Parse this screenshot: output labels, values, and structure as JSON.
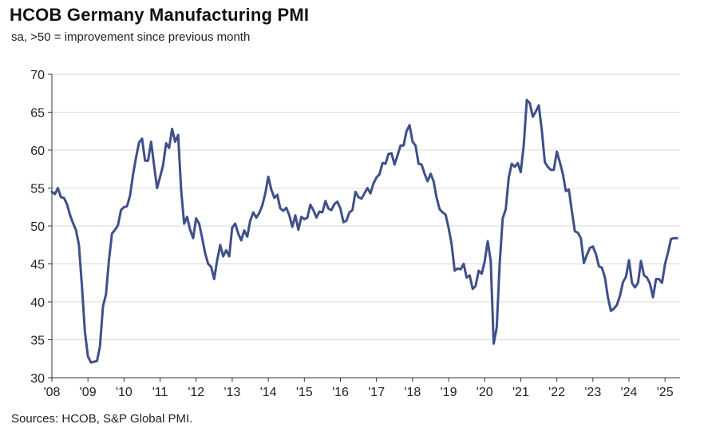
{
  "header": {
    "title": "HCOB Germany Manufacturing PMI",
    "subtitle": "sa, >50 = improvement since previous month"
  },
  "footer": {
    "source": "Sources: HCOB, S&P Global PMI."
  },
  "colors": {
    "line": "#3f4f8a",
    "grid": "#d9d9d9",
    "axis": "#333333"
  },
  "chart_data": {
    "type": "line",
    "title": "HCOB Germany Manufacturing PMI",
    "subtitle": "sa, >50 = improvement since previous month",
    "xlabel": "",
    "ylabel": "",
    "ylim": [
      30,
      70
    ],
    "yticks": [
      30,
      35,
      40,
      45,
      50,
      55,
      60,
      65,
      70
    ],
    "xlim": [
      "2008-01",
      "2025-06"
    ],
    "xticks": [
      "'08",
      "'09",
      "'10",
      "'11",
      "'12",
      "'13",
      "'14",
      "'15",
      "'16",
      "'17",
      "'18",
      "'19",
      "'20",
      "'21",
      "'22",
      "'23",
      "'24",
      "'25"
    ],
    "grid": "horizontal",
    "series": [
      {
        "x": [
          "2008-01",
          "2008-02",
          "2008-03",
          "2008-04",
          "2008-05",
          "2008-06",
          "2008-07",
          "2008-08",
          "2008-09",
          "2008-10",
          "2008-11",
          "2008-12",
          "2009-01",
          "2009-02",
          "2009-03",
          "2009-04",
          "2009-05",
          "2009-06",
          "2009-07",
          "2009-08",
          "2009-09",
          "2009-10",
          "2009-11",
          "2009-12",
          "2010-01",
          "2010-02",
          "2010-03",
          "2010-04",
          "2010-05",
          "2010-06",
          "2010-07",
          "2010-08",
          "2010-09",
          "2010-10",
          "2010-11",
          "2010-12",
          "2011-01",
          "2011-02",
          "2011-03",
          "2011-04",
          "2011-05",
          "2011-06",
          "2011-07",
          "2011-08",
          "2011-09",
          "2011-10",
          "2011-11",
          "2011-12",
          "2012-01",
          "2012-02",
          "2012-03",
          "2012-04",
          "2012-05",
          "2012-06",
          "2012-07",
          "2012-08",
          "2012-09",
          "2012-10",
          "2012-11",
          "2012-12",
          "2013-01",
          "2013-02",
          "2013-03",
          "2013-04",
          "2013-05",
          "2013-06",
          "2013-07",
          "2013-08",
          "2013-09",
          "2013-10",
          "2013-11",
          "2013-12",
          "2014-01",
          "2014-02",
          "2014-03",
          "2014-04",
          "2014-05",
          "2014-06",
          "2014-07",
          "2014-08",
          "2014-09",
          "2014-10",
          "2014-11",
          "2014-12",
          "2015-01",
          "2015-02",
          "2015-03",
          "2015-04",
          "2015-05",
          "2015-06",
          "2015-07",
          "2015-08",
          "2015-09",
          "2015-10",
          "2015-11",
          "2015-12",
          "2016-01",
          "2016-02",
          "2016-03",
          "2016-04",
          "2016-05",
          "2016-06",
          "2016-07",
          "2016-08",
          "2016-09",
          "2016-10",
          "2016-11",
          "2016-12",
          "2017-01",
          "2017-02",
          "2017-03",
          "2017-04",
          "2017-05",
          "2017-06",
          "2017-07",
          "2017-08",
          "2017-09",
          "2017-10",
          "2017-11",
          "2017-12",
          "2018-01",
          "2018-02",
          "2018-03",
          "2018-04",
          "2018-05",
          "2018-06",
          "2018-07",
          "2018-08",
          "2018-09",
          "2018-10",
          "2018-11",
          "2018-12",
          "2019-01",
          "2019-02",
          "2019-03",
          "2019-04",
          "2019-05",
          "2019-06",
          "2019-07",
          "2019-08",
          "2019-09",
          "2019-10",
          "2019-11",
          "2019-12",
          "2020-01",
          "2020-02",
          "2020-03",
          "2020-04",
          "2020-05",
          "2020-06",
          "2020-07",
          "2020-08",
          "2020-09",
          "2020-10",
          "2020-11",
          "2020-12",
          "2021-01",
          "2021-02",
          "2021-03",
          "2021-04",
          "2021-05",
          "2021-06",
          "2021-07",
          "2021-08",
          "2021-09",
          "2021-10",
          "2021-11",
          "2021-12",
          "2022-01",
          "2022-02",
          "2022-03",
          "2022-04",
          "2022-05",
          "2022-06",
          "2022-07",
          "2022-08",
          "2022-09",
          "2022-10",
          "2022-11",
          "2022-12",
          "2023-01",
          "2023-02",
          "2023-03",
          "2023-04",
          "2023-05",
          "2023-06",
          "2023-07",
          "2023-08",
          "2023-09",
          "2023-10",
          "2023-11",
          "2023-12",
          "2024-01",
          "2024-02",
          "2024-03",
          "2024-04",
          "2024-05",
          "2024-06",
          "2024-07",
          "2024-08",
          "2024-09",
          "2024-10",
          "2024-11",
          "2024-12",
          "2025-01",
          "2025-02",
          "2025-03",
          "2025-04",
          "2025-05"
        ],
        "values": [
          54.5,
          54.2,
          55.0,
          53.8,
          53.7,
          52.9,
          51.5,
          50.4,
          49.5,
          47.5,
          42.0,
          36.0,
          32.8,
          32.0,
          32.1,
          32.2,
          34.1,
          39.4,
          41.0,
          45.5,
          49.0,
          49.5,
          50.1,
          52.1,
          52.5,
          52.6,
          54.0,
          56.8,
          59.0,
          61.0,
          61.5,
          58.6,
          58.6,
          61.1,
          58.0,
          55.0,
          56.5,
          58.0,
          60.9,
          60.3,
          62.8,
          61.1,
          62.0,
          54.8,
          50.3,
          51.2,
          49.5,
          48.4,
          51.0,
          50.3,
          48.4,
          46.4,
          45.0,
          44.6,
          43.0,
          45.5,
          47.5,
          46.0,
          46.8,
          46.0,
          49.8,
          50.3,
          49.0,
          48.1,
          49.4,
          48.6,
          50.7,
          51.8,
          51.1,
          51.7,
          52.7,
          54.3,
          56.5,
          54.8,
          53.7,
          54.1,
          52.3,
          52.0,
          52.4,
          51.4,
          49.9,
          51.4,
          49.5,
          51.2,
          50.9,
          51.1,
          52.8,
          52.1,
          51.1,
          51.9,
          51.8,
          53.3,
          52.3,
          52.1,
          52.9,
          53.2,
          52.3,
          50.5,
          50.7,
          51.8,
          52.1,
          54.5,
          53.8,
          53.6,
          54.3,
          55.0,
          54.3,
          55.6,
          56.4,
          56.8,
          58.3,
          58.2,
          59.5,
          59.6,
          58.1,
          59.3,
          60.6,
          60.6,
          62.5,
          63.3,
          61.1,
          60.6,
          58.2,
          58.1,
          56.9,
          55.9,
          56.9,
          55.9,
          53.7,
          52.2,
          51.8,
          51.5,
          49.7,
          47.6,
          44.1,
          44.4,
          44.3,
          45.0,
          43.2,
          43.5,
          41.7,
          42.1,
          44.1,
          43.7,
          45.3,
          48.0,
          45.4,
          34.5,
          36.6,
          45.2,
          51.0,
          52.2,
          56.4,
          58.2,
          57.8,
          58.3,
          57.1,
          60.7,
          66.6,
          66.2,
          64.4,
          65.1,
          65.9,
          62.6,
          58.4,
          57.8,
          57.4,
          57.4,
          59.8,
          58.4,
          56.9,
          54.6,
          54.8,
          52.0,
          49.3,
          49.1,
          48.4,
          45.1,
          46.2,
          47.1,
          47.3,
          46.3,
          44.7,
          44.5,
          43.2,
          40.6,
          38.8,
          39.1,
          39.6,
          40.8,
          42.6,
          43.3,
          45.5,
          42.5,
          41.9,
          42.5,
          45.4,
          43.5,
          43.2,
          42.4,
          40.6,
          43.0,
          43.0,
          42.5,
          45.0,
          46.5,
          48.3,
          48.4,
          48.4
        ]
      }
    ]
  }
}
